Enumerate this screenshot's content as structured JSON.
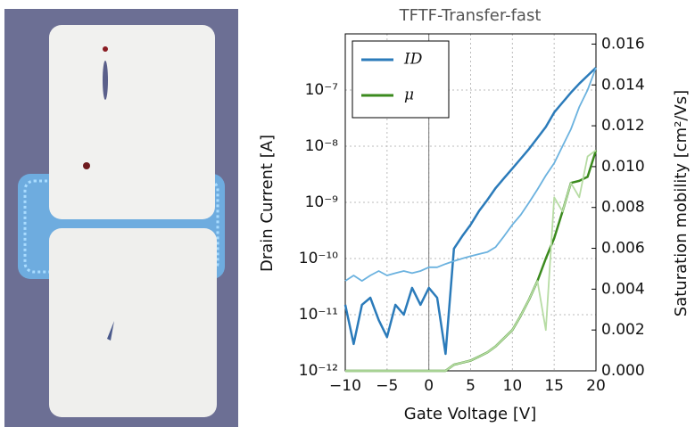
{
  "chart_data": {
    "type": "line",
    "title": "TFTF-Transfer-fast",
    "x_label": "Gate Voltage [V]",
    "y_label": "Drain Current [A]",
    "y2_label": "Saturation mobility [cm²/Vs]",
    "x": [
      -10,
      -9,
      -8,
      -7,
      -6,
      -5,
      -4,
      -3,
      -2,
      -1,
      0,
      1,
      2,
      3,
      4,
      5,
      6,
      7,
      8,
      9,
      10,
      11,
      12,
      13,
      14,
      15,
      16,
      17,
      18,
      19,
      20
    ],
    "series": [
      {
        "name": "ID",
        "color": "#2b7bba",
        "values": [
          1.5e-11,
          3e-12,
          1.5e-11,
          2e-11,
          8e-12,
          4e-12,
          1.5e-11,
          1e-11,
          3e-11,
          1.5e-11,
          3e-11,
          2e-11,
          2e-12,
          1.5e-10,
          2.5e-10,
          4e-10,
          7e-10,
          1.1e-09,
          1.8e-09,
          2.7e-09,
          4e-09,
          6e-09,
          9e-09,
          1.4e-08,
          2.2e-08,
          4e-08,
          6e-08,
          9e-08,
          1.3e-07,
          1.8e-07,
          2.5e-07
        ]
      },
      {
        "color": "#6bb2df",
        "values": [
          4e-11,
          5e-11,
          4e-11,
          5e-11,
          6e-11,
          5e-11,
          5.5e-11,
          6e-11,
          5.5e-11,
          6e-11,
          7e-11,
          7e-11,
          8e-11,
          9e-11,
          1e-10,
          1.1e-10,
          1.2e-10,
          1.3e-10,
          1.6e-10,
          2.5e-10,
          4e-10,
          6e-10,
          1e-09,
          1.7e-09,
          3e-09,
          5e-09,
          1e-08,
          2e-08,
          5e-08,
          1e-07,
          2.5e-07
        ]
      },
      {
        "name": "μ",
        "color": "#3b8a1e",
        "axis": "y2",
        "values": [
          0,
          0,
          0,
          0,
          0,
          0,
          0,
          0,
          0,
          0,
          0,
          0,
          0,
          0.0003,
          0.0004,
          0.0005,
          0.0007,
          0.0009,
          0.0012,
          0.0016,
          0.002,
          0.0027,
          0.0035,
          0.0044,
          0.0055,
          0.0065,
          0.0078,
          0.0092,
          0.0093,
          0.0095,
          0.0108
        ]
      },
      {
        "color": "#b7dca4",
        "axis": "y2",
        "values": [
          0,
          0,
          0,
          0,
          0,
          0,
          0,
          0,
          0,
          0,
          0,
          0,
          0,
          0.0003,
          0.0004,
          0.0005,
          0.0007,
          0.0009,
          0.0012,
          0.0016,
          0.002,
          0.0027,
          0.0035,
          0.0044,
          0.002,
          0.0085,
          0.0078,
          0.0092,
          0.0085,
          0.0105,
          0.0108
        ]
      }
    ],
    "xlim": [
      -10,
      20
    ],
    "xticks": [
      {
        "value": -10,
        "label": "−10"
      },
      {
        "value": -5,
        "label": "−5"
      },
      0,
      5,
      10,
      15,
      20
    ],
    "yscale": "log",
    "ylim": [
      1e-12,
      1e-06
    ],
    "yticks": [
      {
        "value": 1e-12,
        "label": "10⁻¹²"
      },
      {
        "value": 1e-11,
        "label": "10⁻¹¹"
      },
      {
        "value": 1e-10,
        "label": "10⁻¹⁰"
      },
      {
        "value": 1e-09,
        "label": "10⁻⁹"
      },
      {
        "value": 1e-08,
        "label": "10⁻⁸"
      },
      {
        "value": 1e-07,
        "label": "10⁻⁷"
      }
    ],
    "y2lim": [
      0,
      0.0165
    ],
    "y2ticks": [
      {
        "value": 0,
        "label": "0.000"
      },
      {
        "value": 0.002,
        "label": "0.002"
      },
      {
        "value": 0.004,
        "label": "0.004"
      },
      {
        "value": 0.006,
        "label": "0.006"
      },
      {
        "value": 0.008,
        "label": "0.008"
      },
      {
        "value": 0.01,
        "label": "0.010"
      },
      {
        "value": 0.012,
        "label": "0.012"
      },
      {
        "value": 0.014,
        "label": "0.014"
      },
      {
        "value": 0.016,
        "label": "0.016"
      }
    ],
    "grid": true,
    "legend": "upper left"
  }
}
